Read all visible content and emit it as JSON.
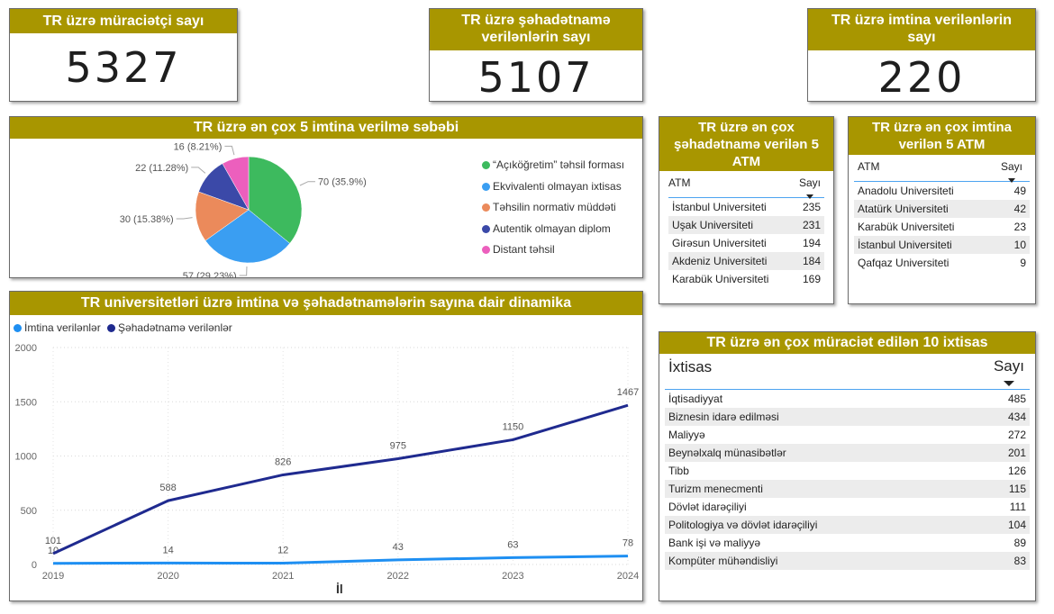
{
  "kpi": {
    "applicants": {
      "title": "TR üzrə müraciətçi sayı",
      "value": "5327"
    },
    "certificates": {
      "title": "TR üzrə şəhadətnamə verilənlərin sayı",
      "value": "5107"
    },
    "rejections": {
      "title": "TR üzrə imtina verilənlərin sayı",
      "value": "220"
    }
  },
  "pie": {
    "title": "TR üzrə ən çox 5 imtina verilmə səbəbi",
    "chart_data": {
      "type": "pie",
      "slices": [
        {
          "label": "“Açıköğretim” təhsil forması",
          "value": 70,
          "pct_label": "70 (35.9%)",
          "color": "#3dba5e"
        },
        {
          "label": "Ekvivalenti olmayan ixtisas",
          "value": 57,
          "pct_label": "57 (29.23%)",
          "color": "#3a9ef2"
        },
        {
          "label": "Təhsilin normativ müddəti",
          "value": 30,
          "pct_label": "30 (15.38%)",
          "color": "#eb8a5b"
        },
        {
          "label": "Autentik olmayan diplom",
          "value": 22,
          "pct_label": "22 (11.28%)",
          "color": "#3b49a8"
        },
        {
          "label": "Distant təhsil",
          "value": 16,
          "pct_label": "16 (8.21%)",
          "color": "#ec5fbd"
        }
      ]
    }
  },
  "top_cert": {
    "title": "TR üzrə ən çox şəhadətnamə verilən 5 ATM",
    "col1": "ATM",
    "col2": "Sayı",
    "rows": [
      {
        "name": "İstanbul Universiteti",
        "value": "235"
      },
      {
        "name": "Uşak Universiteti",
        "value": "231"
      },
      {
        "name": "Girəsun Universiteti",
        "value": "194"
      },
      {
        "name": "Akdeniz Universiteti",
        "value": "184"
      },
      {
        "name": "Karabük Universiteti",
        "value": "169"
      }
    ]
  },
  "top_rej": {
    "title": "TR üzrə ən çox imtina verilən 5 ATM",
    "col1": "ATM",
    "col2": "Sayı",
    "rows": [
      {
        "name": "Anadolu Universiteti",
        "value": "49"
      },
      {
        "name": "Atatürk Universiteti",
        "value": "42"
      },
      {
        "name": "Karabük Universiteti",
        "value": "23"
      },
      {
        "name": "İstanbul Universiteti",
        "value": "10"
      },
      {
        "name": "Qafqaz Universiteti",
        "value": "9"
      }
    ]
  },
  "top_spec": {
    "title": "TR üzrə ən çox müraciət edilən 10 ixtisas",
    "col1": "İxtisas",
    "col2": "Sayı",
    "rows": [
      {
        "name": "İqtisadiyyat",
        "value": "485"
      },
      {
        "name": "Biznesin idarə edilməsi",
        "value": "434"
      },
      {
        "name": "Maliyyə",
        "value": "272"
      },
      {
        "name": "Beynəlxalq münasibətlər",
        "value": "201"
      },
      {
        "name": "Tibb",
        "value": "126"
      },
      {
        "name": "Turizm menecmenti",
        "value": "115"
      },
      {
        "name": "Dövlət idarəçiliyi",
        "value": "111"
      },
      {
        "name": "Politologiya və dövlət idarəçiliyi",
        "value": "104"
      },
      {
        "name": "Bank işi və maliyyə",
        "value": "89"
      },
      {
        "name": "Kompüter mühəndisliyi",
        "value": "83"
      }
    ]
  },
  "line": {
    "title": "TR universitetləri üzrə imtina və şəhadətnamələrin sayına dair dinamika",
    "xlabel": "İl",
    "chart_data": {
      "type": "line",
      "x": [
        "2019",
        "2020",
        "2021",
        "2022",
        "2023",
        "2024"
      ],
      "ylim": [
        0,
        2000
      ],
      "yticks": [
        "0",
        "500",
        "1000",
        "1500",
        "2000"
      ],
      "grid": true,
      "legend_position": "top-left",
      "series": [
        {
          "name": "İmtina verilənlər",
          "values": [
            10,
            14,
            12,
            43,
            63,
            78
          ],
          "color": "#1e8ff2"
        },
        {
          "name": "Şəhadətnamə verilənlər",
          "values": [
            101,
            588,
            826,
            975,
            1150,
            1467
          ],
          "color": "#1f2a8f"
        }
      ]
    }
  }
}
